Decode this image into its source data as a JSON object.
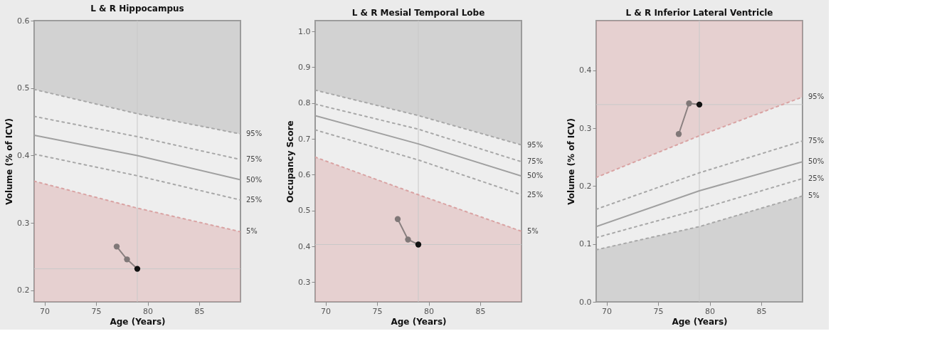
{
  "chart_data": [
    {
      "type": "line",
      "title": "L & R Hippocampus",
      "xlabel": "Age (Years)",
      "ylabel": "Volume (% of ICV)",
      "xlim": [
        69,
        89
      ],
      "xticks": [
        70,
        75,
        80,
        85
      ],
      "ylim": [
        0.183,
        0.6
      ],
      "yticks": [
        0.2,
        0.3,
        0.4,
        0.5,
        0.6
      ],
      "grid": false,
      "ref_lines": [
        {
          "axis": "x",
          "value": 79,
          "color": "#c8c8c8"
        },
        {
          "axis": "y",
          "value": 0.232,
          "color": "#c8c8c8"
        }
      ],
      "series": [
        {
          "name": "95%",
          "x": [
            69,
            79,
            89
          ],
          "values": [
            0.498,
            0.462,
            0.432
          ],
          "upper": [
            0.6,
            0.6,
            0.6
          ],
          "lower": [
            0.498,
            0.462,
            0.432
          ],
          "color": "#a8a8a8",
          "line_style": "dotted",
          "marker": "none"
        },
        {
          "name": "75%",
          "x": [
            69,
            79,
            89
          ],
          "values": [
            0.458,
            0.428,
            0.394
          ],
          "color": "#a8a8a8",
          "line_style": "dotted",
          "marker": "none"
        },
        {
          "name": "50%",
          "x": [
            69,
            79,
            89
          ],
          "values": [
            0.43,
            0.4,
            0.364
          ],
          "color": "#a0a0a0",
          "line_style": "solid",
          "marker": "none"
        },
        {
          "name": "25%",
          "x": [
            69,
            79,
            89
          ],
          "values": [
            0.402,
            0.37,
            0.334
          ],
          "color": "#a8a8a8",
          "line_style": "dotted",
          "marker": "none"
        },
        {
          "name": "5%",
          "x": [
            69,
            79,
            89
          ],
          "values": [
            0.362,
            0.322,
            0.287
          ],
          "upper": [
            0.362,
            0.322,
            0.287
          ],
          "lower": [
            0.183,
            0.183,
            0.183
          ],
          "color": "#d9a3a3",
          "line_style": "dotted",
          "marker": "none"
        },
        {
          "x": [
            77,
            78,
            79
          ],
          "values": [
            0.265,
            0.246,
            0.232
          ],
          "color": "#8a8080",
          "colors": [
            "#807878",
            "#807878",
            "#111111"
          ],
          "line_style": "solid",
          "marker": "circle"
        }
      ]
    },
    {
      "type": "line",
      "title": "L & R Mesial Temporal Lobe",
      "xlabel": "Age (Years)",
      "ylabel": "Occupancy Score",
      "xlim": [
        69,
        89
      ],
      "xticks": [
        70,
        75,
        80,
        85
      ],
      "ylim": [
        0.245,
        1.03
      ],
      "yticks": [
        0.3,
        0.4,
        0.5,
        0.6,
        0.7,
        0.8,
        0.9,
        {
          "value": 1,
          "label": "1.0"
        }
      ],
      "grid": false,
      "ref_lines": [
        {
          "axis": "x",
          "value": 79,
          "color": "#c8c8c8"
        },
        {
          "axis": "y",
          "value": 0.405,
          "color": "#c8c8c8"
        }
      ],
      "series": [
        {
          "name": "95%",
          "x": [
            69,
            79,
            89
          ],
          "values": [
            0.836,
            0.765,
            0.683
          ],
          "upper": [
            1.03,
            1.03,
            1.03
          ],
          "lower": [
            0.836,
            0.765,
            0.683
          ],
          "color": "#a8a8a8",
          "line_style": "dotted",
          "marker": "none"
        },
        {
          "name": "75%",
          "x": [
            69,
            79,
            89
          ],
          "values": [
            0.797,
            0.727,
            0.636
          ],
          "color": "#a8a8a8",
          "line_style": "dotted",
          "marker": "none"
        },
        {
          "name": "50%",
          "x": [
            69,
            79,
            89
          ],
          "values": [
            0.765,
            0.686,
            0.596
          ],
          "color": "#a0a0a0",
          "line_style": "solid",
          "marker": "none"
        },
        {
          "name": "25%",
          "x": [
            69,
            79,
            89
          ],
          "values": [
            0.725,
            0.641,
            0.544
          ],
          "color": "#a8a8a8",
          "line_style": "dotted",
          "marker": "none"
        },
        {
          "name": "5%",
          "x": [
            69,
            79,
            89
          ],
          "values": [
            0.649,
            0.544,
            0.442
          ],
          "upper": [
            0.649,
            0.544,
            0.442
          ],
          "lower": [
            0.245,
            0.245,
            0.245
          ],
          "color": "#d9a3a3",
          "line_style": "dotted",
          "marker": "none"
        },
        {
          "x": [
            77,
            78,
            79
          ],
          "values": [
            0.476,
            0.419,
            0.405
          ],
          "color": "#8a8080",
          "colors": [
            "#807878",
            "#807878",
            "#111111"
          ],
          "line_style": "solid",
          "marker": "circle"
        }
      ]
    },
    {
      "type": "line",
      "title": "L & R Inferior Lateral Ventricle",
      "xlabel": "Age (Years)",
      "ylabel": "Volume (% of ICV)",
      "xlim": [
        69,
        89
      ],
      "xticks": [
        70,
        75,
        80,
        85
      ],
      "ylim": [
        0,
        0.486
      ],
      "yticks": [
        {
          "value": 0,
          "label": "0.0"
        },
        0.1,
        0.2,
        0.3,
        0.4
      ],
      "grid": false,
      "ref_lines": [
        {
          "axis": "x",
          "value": 79,
          "color": "#c8c8c8"
        },
        {
          "axis": "y",
          "value": 0.341,
          "color": "#c8c8c8"
        }
      ],
      "series": [
        {
          "name": "95%",
          "x": [
            69,
            79,
            89
          ],
          "values": [
            0.215,
            0.287,
            0.354
          ],
          "upper": [
            0.486,
            0.486,
            0.486
          ],
          "lower": [
            0.215,
            0.287,
            0.354
          ],
          "color": "#d9a3a3",
          "line_style": "dotted",
          "marker": "none"
        },
        {
          "name": "75%",
          "x": [
            69,
            79,
            89
          ],
          "values": [
            0.16,
            0.223,
            0.278
          ],
          "color": "#a8a8a8",
          "line_style": "dotted",
          "marker": "none"
        },
        {
          "name": "50%",
          "x": [
            69,
            79,
            89
          ],
          "values": [
            0.13,
            0.192,
            0.242
          ],
          "color": "#a0a0a0",
          "line_style": "solid",
          "marker": "none"
        },
        {
          "name": "25%",
          "x": [
            69,
            79,
            89
          ],
          "values": [
            0.111,
            0.16,
            0.213
          ],
          "color": "#a8a8a8",
          "line_style": "dotted",
          "marker": "none"
        },
        {
          "name": "5%",
          "x": [
            69,
            79,
            89
          ],
          "values": [
            0.09,
            0.13,
            0.183
          ],
          "upper": [
            0.09,
            0.13,
            0.183
          ],
          "lower": [
            0,
            0,
            0
          ],
          "color": "#a8a8a8",
          "line_style": "dotted",
          "marker": "none"
        },
        {
          "x": [
            77,
            78,
            79
          ],
          "values": [
            0.29,
            0.343,
            0.341
          ],
          "color": "#8a8080",
          "colors": [
            "#807878",
            "#807878",
            "#111111"
          ],
          "line_style": "solid",
          "marker": "circle"
        }
      ]
    }
  ]
}
